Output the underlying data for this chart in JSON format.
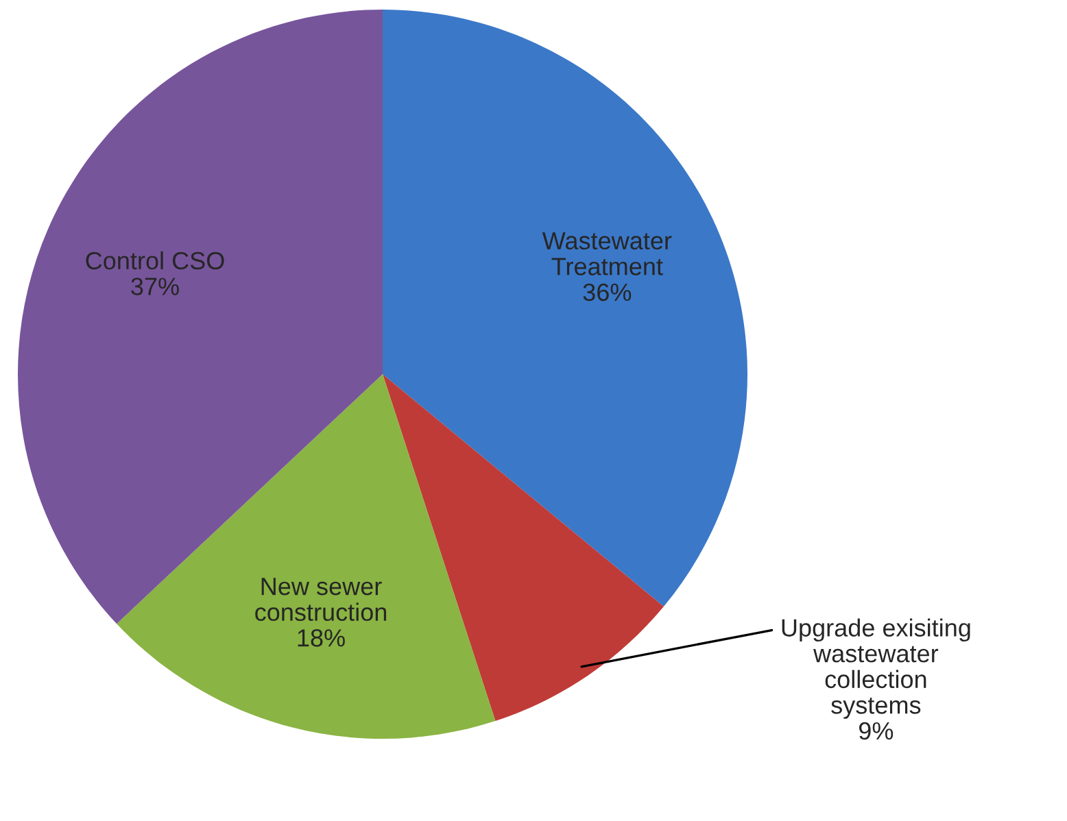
{
  "chart_data": {
    "type": "pie",
    "categories": [
      "Wastewater\nTreatment",
      "Upgrade exisiting\nwastewater\ncollection\nsystems",
      "New sewer\nconstruction",
      "Control CSO"
    ],
    "values": [
      36,
      9,
      18,
      37
    ],
    "value_labels": [
      "36%",
      "9%",
      "18%",
      "37%"
    ],
    "colors": [
      "#3b78c8",
      "#bf3b37",
      "#8ab443",
      "#77559b"
    ]
  }
}
